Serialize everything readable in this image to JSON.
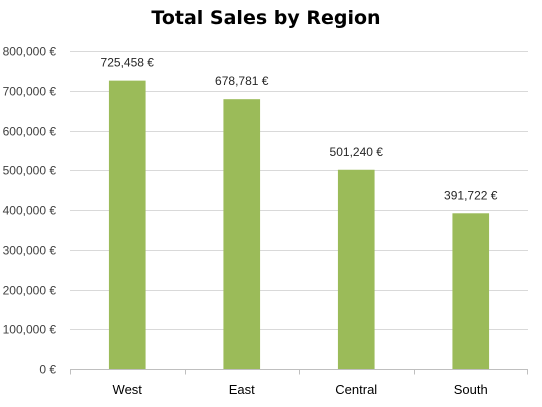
{
  "chart_data": {
    "type": "bar",
    "title": "Total Sales by Region",
    "categories": [
      "West",
      "East",
      "Central",
      "South"
    ],
    "values": [
      725458,
      678781,
      501240,
      391722
    ],
    "data_labels": [
      "725,458 €",
      "678,781 €",
      "501,240 €",
      "391,722 €"
    ],
    "y_ticks": [
      0,
      100000,
      200000,
      300000,
      400000,
      500000,
      600000,
      700000,
      800000
    ],
    "y_tick_labels": [
      "0 €",
      "100,000 €",
      "200,000 €",
      "300,000 €",
      "400,000 €",
      "500,000 €",
      "600,000 €",
      "700,000 €",
      "800,000 €"
    ],
    "ylim": [
      0,
      800000
    ],
    "xlabel": "",
    "ylabel": "",
    "grid": true,
    "legend": "none",
    "bar_color": "#9bbb59"
  }
}
